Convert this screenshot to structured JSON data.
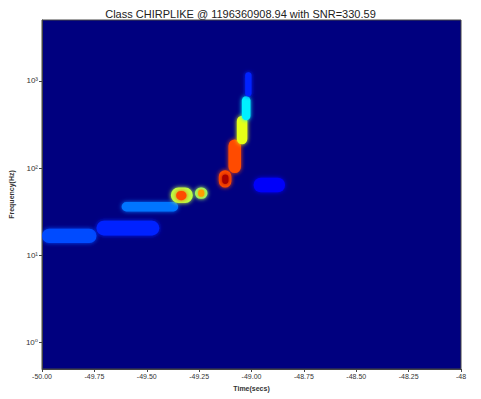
{
  "chart_data": {
    "type": "heatmap",
    "title": "Class CHIRPLIKE @ 1196360908.94 with SNR=330.59",
    "x_label": "Time(secs)",
    "y_label": "Frequency(Hz)",
    "xlim": [
      -50,
      -48
    ],
    "xticks": [
      {
        "value": -50,
        "label": "-50.00"
      },
      {
        "value": -49.75,
        "label": "-49.75"
      },
      {
        "value": -49.5,
        "label": "-49.50"
      },
      {
        "value": -49.25,
        "label": "-49.25"
      },
      {
        "value": -49,
        "label": "-49.00"
      },
      {
        "value": -48.75,
        "label": "-48.75"
      },
      {
        "value": -48.5,
        "label": "-48.50"
      },
      {
        "value": -48.25,
        "label": "-48.25"
      },
      {
        "value": -48,
        "label": "-48"
      }
    ],
    "ylim": [
      0.5,
      5000
    ],
    "yticks": [
      {
        "value": 1,
        "label": "10⁰"
      },
      {
        "value": 10,
        "label": "10¹"
      },
      {
        "value": 100,
        "label": "10²"
      },
      {
        "value": 1000,
        "label": "10³"
      }
    ],
    "log": "y",
    "grid": false,
    "energy_range": [
      0,
      25
    ],
    "cells": [
      {
        "t": [
          -50.0,
          -49.74
        ],
        "f": [
          13.9,
          20.3
        ],
        "energy": 5
      },
      {
        "t": [
          -49.74,
          -49.44
        ],
        "f": [
          17,
          25
        ],
        "energy": 4
      },
      {
        "t": [
          -49.62,
          -49.35
        ],
        "f": [
          32,
          41
        ],
        "energy": 6
      },
      {
        "t": [
          -48.99,
          -48.84
        ],
        "f": [
          53,
          78
        ],
        "energy": 3
      },
      {
        "t": [
          -49.385,
          -49.28
        ],
        "f": [
          40,
          60
        ],
        "energy": 14
      },
      {
        "t": [
          -49.36,
          -49.31
        ],
        "f": [
          43,
          55
        ],
        "energy": 20
      },
      {
        "t": [
          -49.27,
          -49.21
        ],
        "f": [
          44.6,
          60
        ],
        "energy": 13
      },
      {
        "t": [
          -49.255,
          -49.225
        ],
        "f": [
          47,
          57
        ],
        "energy": 18
      },
      {
        "t": [
          -49.156,
          -49.096
        ],
        "f": [
          60,
          95
        ],
        "energy": 20
      },
      {
        "t": [
          -49.14,
          -49.11
        ],
        "f": [
          66,
          85
        ],
        "energy": 24
      },
      {
        "t": [
          -49.11,
          -49.05
        ],
        "f": [
          88,
          214
        ],
        "energy": 20
      },
      {
        "t": [
          -49.07,
          -49.02
        ],
        "f": [
          188,
          400
        ],
        "energy": 15
      },
      {
        "t": [
          -49.046,
          -49.005
        ],
        "f": [
          355,
          668
        ],
        "energy": 9
      },
      {
        "t": [
          -49.03,
          -49.0
        ],
        "f": [
          668,
          1259
        ],
        "energy": 4
      }
    ]
  }
}
